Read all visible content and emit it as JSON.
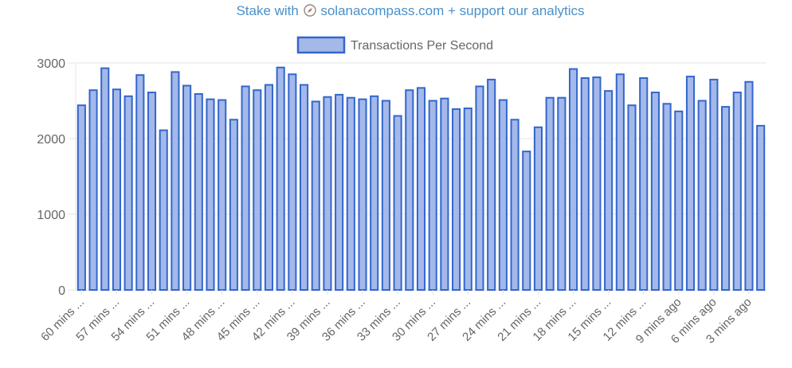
{
  "header": {
    "link_prefix": "Stake with",
    "link_suffix": "solanacompass.com + support our analytics",
    "link_color": "#4a90c9",
    "icon": "compass-icon"
  },
  "chart_data": {
    "type": "bar",
    "title": "",
    "xlabel": "",
    "ylabel": "",
    "ylim": [
      0,
      3000
    ],
    "yticks": [
      0,
      1000,
      2000,
      3000
    ],
    "grid": true,
    "legend_position": "top-center",
    "bar_fill": "#a4b9ea",
    "bar_stroke": "#3366cc",
    "series": [
      {
        "name": "Transactions Per Second",
        "values": [
          2440,
          2640,
          2930,
          2650,
          2560,
          2840,
          2610,
          2110,
          2880,
          2700,
          2590,
          2520,
          2510,
          2250,
          2690,
          2640,
          2710,
          2940,
          2850,
          2710,
          2490,
          2550,
          2580,
          2540,
          2520,
          2560,
          2500,
          2300,
          2640,
          2670,
          2500,
          2530,
          2390,
          2400,
          2690,
          2780,
          2510,
          2250,
          1830,
          2150,
          2540,
          2540,
          2920,
          2800,
          2810,
          2630,
          2850,
          2440,
          2800,
          2610,
          2460,
          2360,
          2820,
          2500,
          2780,
          2420,
          2610,
          2750,
          2170
        ]
      }
    ],
    "x_tick_labels": [
      {
        "index": 0,
        "label": "60 mins ..."
      },
      {
        "index": 3,
        "label": "57 mins ..."
      },
      {
        "index": 6,
        "label": "54 mins ..."
      },
      {
        "index": 9,
        "label": "51 mins ..."
      },
      {
        "index": 12,
        "label": "48 mins ..."
      },
      {
        "index": 15,
        "label": "45 mins ..."
      },
      {
        "index": 18,
        "label": "42 mins ..."
      },
      {
        "index": 21,
        "label": "39 mins ..."
      },
      {
        "index": 24,
        "label": "36 mins ..."
      },
      {
        "index": 27,
        "label": "33 mins ..."
      },
      {
        "index": 30,
        "label": "30 mins ..."
      },
      {
        "index": 33,
        "label": "27 mins ..."
      },
      {
        "index": 36,
        "label": "24 mins ..."
      },
      {
        "index": 39,
        "label": "21 mins ..."
      },
      {
        "index": 42,
        "label": "18 mins ..."
      },
      {
        "index": 45,
        "label": "15 mins ..."
      },
      {
        "index": 48,
        "label": "12 mins ..."
      },
      {
        "index": 51,
        "label": "9 mins ago"
      },
      {
        "index": 54,
        "label": "6 mins ago"
      },
      {
        "index": 57,
        "label": "3 mins ago"
      }
    ]
  }
}
